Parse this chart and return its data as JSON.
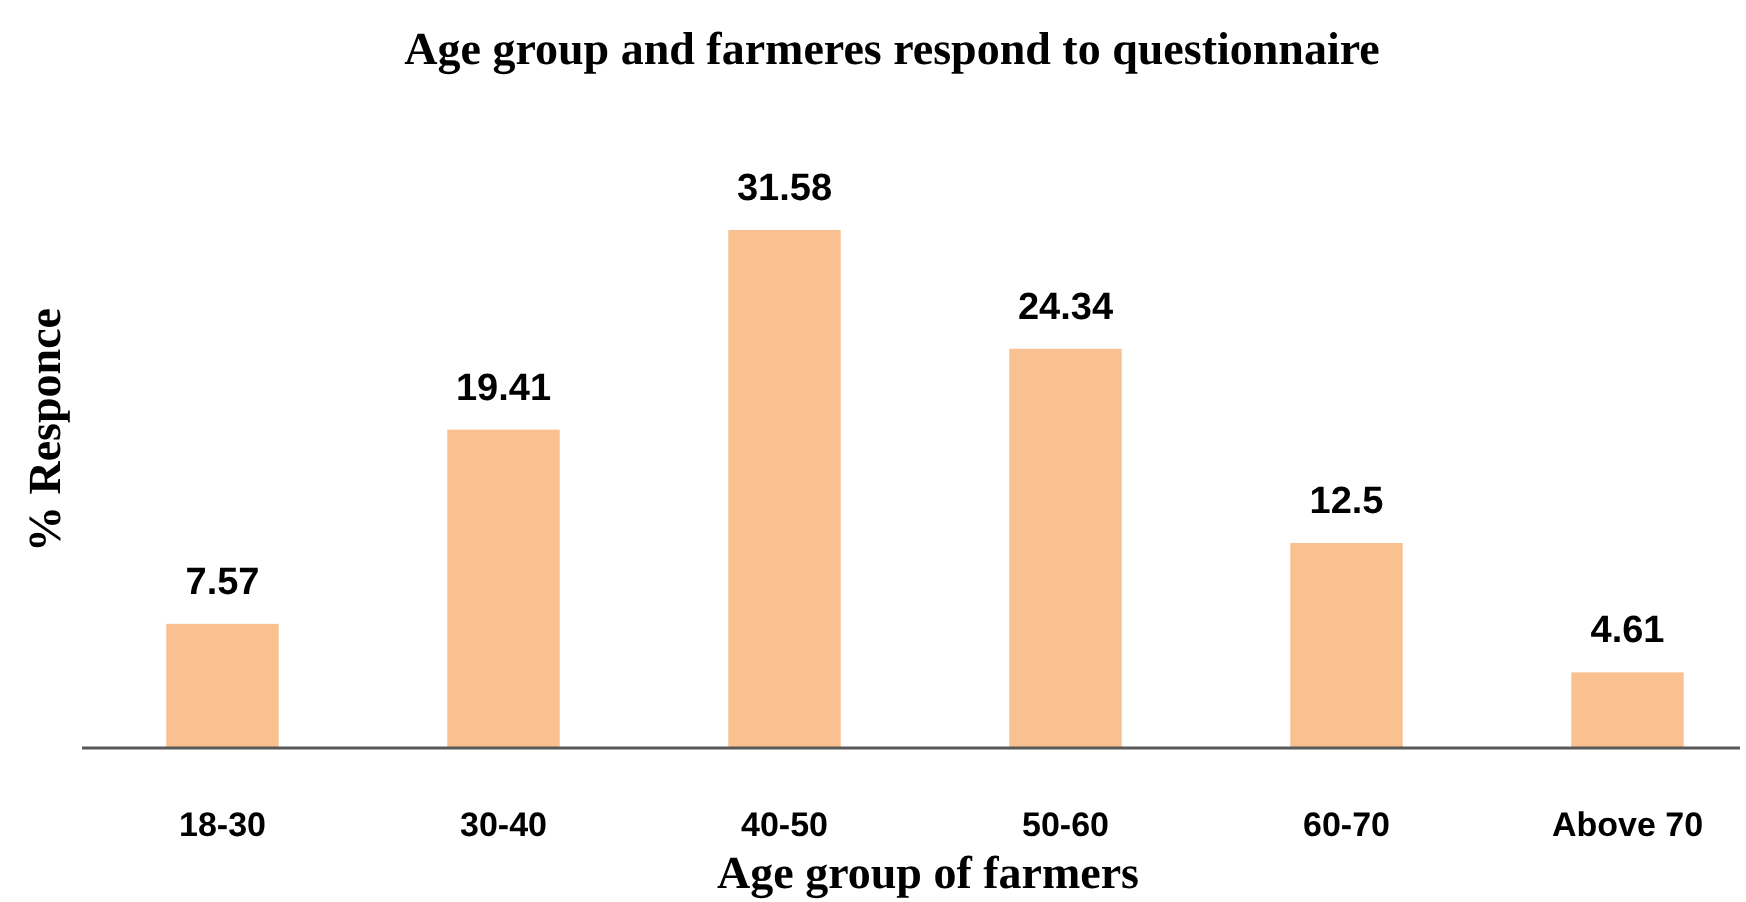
{
  "chart_data": {
    "type": "bar",
    "title": "Age group and farmeres respond to questionnaire",
    "xlabel": "Age group of farmers",
    "ylabel": "% Responce",
    "categories": [
      "18-30",
      "30-40",
      "40-50",
      "50-60",
      "60-70",
      "Above 70"
    ],
    "values": [
      7.57,
      19.41,
      31.58,
      24.34,
      12.5,
      4.61
    ],
    "color": "#f9c18f",
    "data_labels": true
  }
}
